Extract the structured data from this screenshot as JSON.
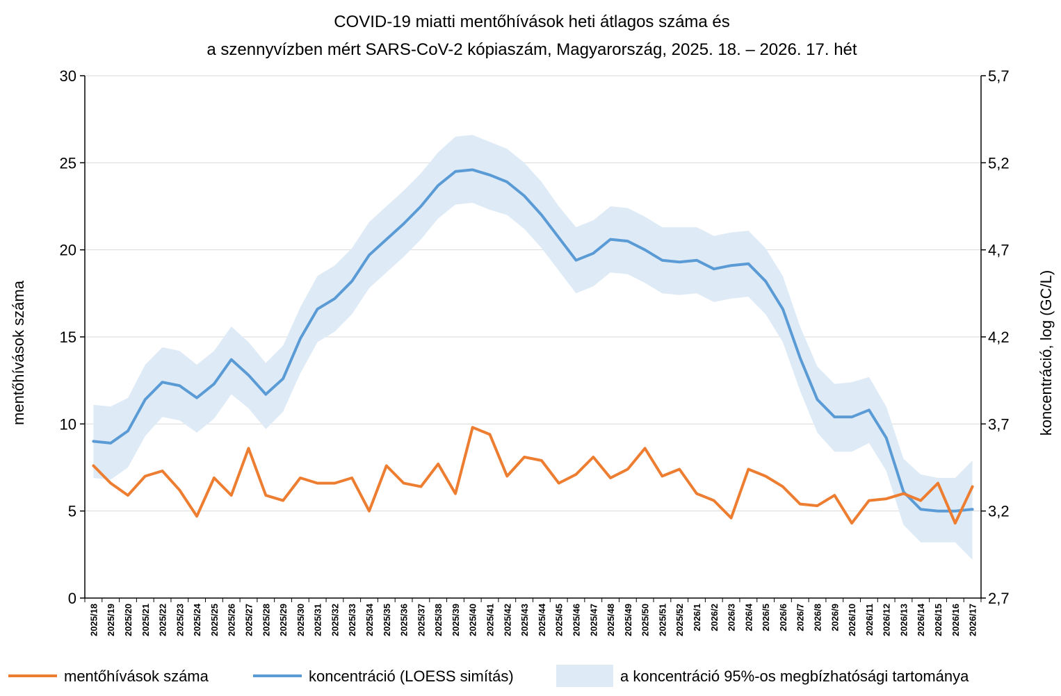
{
  "chart_data": {
    "type": "line",
    "title": "COVID-19 miatti mentőhívások heti átlagos száma és",
    "subtitle": "a szennyvízben mért SARS-CoV-2 kópiaszám, Magyarország, 2025. 18. – 2026. 17. hét",
    "ylabel_left": "mentőhívások száma",
    "ylabel_right": "koncentráció, log (GC/L)",
    "ylim_left": [
      0,
      30
    ],
    "ylim_right": [
      2.7,
      5.7
    ],
    "yticks_left": [
      "0",
      "5",
      "10",
      "15",
      "20",
      "25",
      "30"
    ],
    "yticks_right": [
      "2,7",
      "3,2",
      "3,7",
      "4,2",
      "4,7",
      "5,2",
      "5,7"
    ],
    "grid": "horizontal",
    "legend_position": "bottom",
    "categories": [
      "2025/18",
      "2025/19",
      "2025/20",
      "2025/21",
      "2025/22",
      "2025/23",
      "2025/24",
      "2025/25",
      "2025/26",
      "2025/27",
      "2025/28",
      "2025/29",
      "2025/30",
      "2025/31",
      "2025/32",
      "2025/33",
      "2025/34",
      "2025/35",
      "2025/36",
      "2025/37",
      "2025/38",
      "2025/39",
      "2025/40",
      "2025/41",
      "2025/42",
      "2025/43",
      "2025/44",
      "2025/45",
      "2025/46",
      "2025/47",
      "2025/48",
      "2025/49",
      "2025/50",
      "2025/51",
      "2025/52",
      "2026/1",
      "2026/2",
      "2026/3",
      "2026/4",
      "2026/5",
      "2026/6",
      "2026/7",
      "2026/8",
      "2026/9",
      "2026/10",
      "2026/11",
      "2026/12",
      "2026/13",
      "2026/14",
      "2026/15",
      "2026/16",
      "2026/17"
    ],
    "series": [
      {
        "name": "mentőhívások száma",
        "axis": "left",
        "color": "#ED7D31",
        "values": [
          7.6,
          6.6,
          5.9,
          7.0,
          7.3,
          6.2,
          4.7,
          6.9,
          5.9,
          8.6,
          5.9,
          5.6,
          6.9,
          6.6,
          6.6,
          6.9,
          5.0,
          7.6,
          6.6,
          6.4,
          7.7,
          6.0,
          9.8,
          9.4,
          7.0,
          8.1,
          7.9,
          6.6,
          7.1,
          8.1,
          6.9,
          7.4,
          8.6,
          7.0,
          7.4,
          6.0,
          5.6,
          4.6,
          7.4,
          7.0,
          6.4,
          5.4,
          5.3,
          5.9,
          4.3,
          5.6,
          5.7,
          6.0,
          5.6,
          6.6,
          4.3,
          6.4
        ]
      },
      {
        "name": "koncentráció (LOESS simítás)",
        "axis": "right",
        "color": "#5B9BD5",
        "values": [
          3.6,
          3.59,
          3.66,
          3.84,
          3.94,
          3.92,
          3.85,
          3.93,
          4.07,
          3.98,
          3.87,
          3.96,
          4.19,
          4.36,
          4.42,
          4.52,
          4.67,
          4.76,
          4.85,
          4.95,
          5.07,
          5.15,
          5.16,
          5.13,
          5.09,
          5.01,
          4.9,
          4.77,
          4.64,
          4.68,
          4.76,
          4.75,
          4.7,
          4.64,
          4.63,
          4.64,
          4.59,
          4.61,
          4.62,
          4.52,
          4.36,
          4.08,
          3.84,
          3.74,
          3.74,
          3.78,
          3.62,
          3.31,
          3.21,
          3.2,
          3.2,
          3.21
        ]
      },
      {
        "name": "a koncentráció 95%-os megbízhatósági tartománya",
        "axis": "right",
        "color": "#DEEBF7",
        "type": "band",
        "upper": [
          3.81,
          3.8,
          3.85,
          4.04,
          4.14,
          4.12,
          4.04,
          4.12,
          4.26,
          4.17,
          4.05,
          4.15,
          4.37,
          4.55,
          4.61,
          4.71,
          4.86,
          4.95,
          5.04,
          5.14,
          5.26,
          5.35,
          5.36,
          5.32,
          5.28,
          5.2,
          5.09,
          4.95,
          4.83,
          4.87,
          4.95,
          4.94,
          4.89,
          4.83,
          4.83,
          4.83,
          4.78,
          4.8,
          4.81,
          4.71,
          4.55,
          4.26,
          4.03,
          3.93,
          3.94,
          3.97,
          3.8,
          3.5,
          3.41,
          3.39,
          3.39,
          3.49
        ],
        "lower": [
          3.39,
          3.38,
          3.45,
          3.63,
          3.74,
          3.72,
          3.65,
          3.73,
          3.87,
          3.79,
          3.67,
          3.77,
          3.99,
          4.17,
          4.23,
          4.33,
          4.48,
          4.57,
          4.66,
          4.76,
          4.88,
          4.96,
          4.97,
          4.93,
          4.9,
          4.82,
          4.71,
          4.58,
          4.45,
          4.49,
          4.57,
          4.56,
          4.51,
          4.45,
          4.44,
          4.45,
          4.4,
          4.42,
          4.43,
          4.33,
          4.17,
          3.89,
          3.65,
          3.54,
          3.54,
          3.59,
          3.43,
          3.12,
          3.02,
          3.02,
          3.02,
          2.92
        ]
      }
    ]
  }
}
